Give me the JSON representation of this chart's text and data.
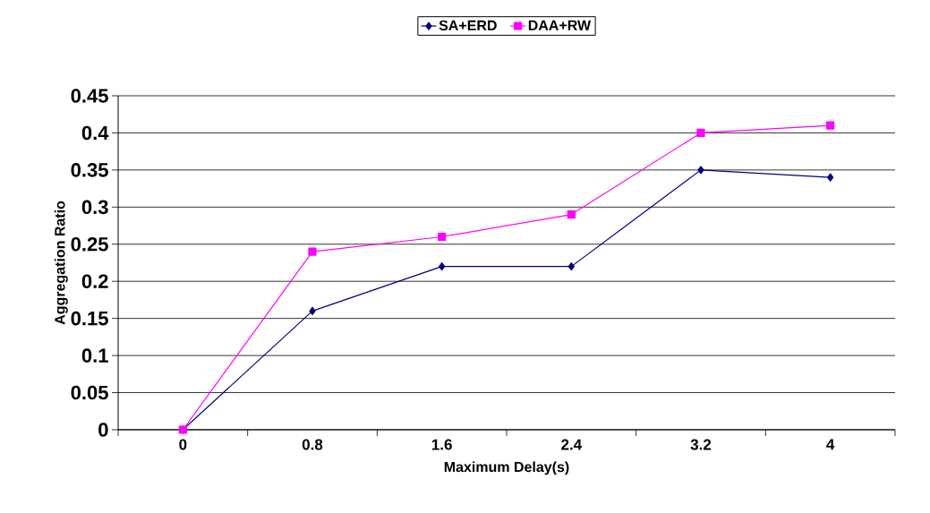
{
  "chart_data": {
    "type": "line",
    "xlabel": "Maximum Delay(s)",
    "ylabel": "Aggregation Ratio",
    "categories": [
      "0",
      "0.8",
      "1.6",
      "2.4",
      "3.2",
      "4"
    ],
    "series": [
      {
        "name": "SA+ERD",
        "color": "#000080",
        "marker": "diamond",
        "values": [
          0,
          0.16,
          0.22,
          0.22,
          0.35,
          0.34
        ]
      },
      {
        "name": "DAA+RW",
        "color": "#ff00ff",
        "marker": "square",
        "values": [
          0,
          0.24,
          0.26,
          0.29,
          0.4,
          0.41
        ]
      }
    ],
    "ylim": [
      0,
      0.45
    ],
    "yticks": [
      0,
      0.05,
      0.1,
      0.15,
      0.2,
      0.25,
      0.3,
      0.35,
      0.4,
      0.45
    ],
    "grid": "y",
    "legend": "top",
    "line_style": "solid"
  }
}
